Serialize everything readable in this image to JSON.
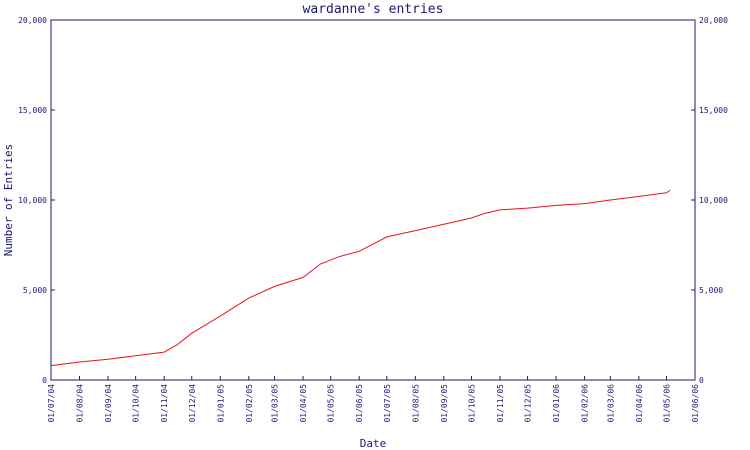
{
  "chart_data": {
    "type": "line",
    "title": "wardanne's entries",
    "xlabel": "Date",
    "ylabel": "Number of Entries",
    "ylim": [
      0,
      20000
    ],
    "yticks": [
      0,
      5000,
      10000,
      15000,
      20000
    ],
    "ytick_labels": [
      "0",
      "5,000",
      "10,000",
      "15,000",
      "20,000"
    ],
    "xticks": [
      "01/07/04",
      "01/08/04",
      "01/09/04",
      "01/10/04",
      "01/11/04",
      "01/12/04",
      "01/01/05",
      "01/02/05",
      "01/03/05",
      "01/04/05",
      "01/05/05",
      "01/06/05",
      "01/07/05",
      "01/08/05",
      "01/09/05",
      "01/10/05",
      "01/11/05",
      "01/12/05",
      "01/01/06",
      "01/02/06",
      "01/03/06",
      "01/04/06",
      "01/05/06",
      "01/06/06"
    ],
    "grid": false,
    "line_color": "#e8141e",
    "axis_color": "#1a1a6e",
    "series": [
      {
        "x": [
          "2004-07-01",
          "2004-08-01",
          "2004-09-01",
          "2004-10-01",
          "2004-11-01",
          "2004-11-15",
          "2004-12-01",
          "2005-01-01",
          "2005-02-01",
          "2005-03-01",
          "2005-04-01",
          "2005-04-20",
          "2005-05-10",
          "2005-06-01",
          "2005-07-01",
          "2005-08-01",
          "2005-09-01",
          "2005-10-01",
          "2005-10-15",
          "2005-11-01",
          "2005-12-01",
          "2006-01-01",
          "2006-02-01",
          "2006-03-01",
          "2006-04-01",
          "2006-05-01",
          "2006-05-05"
        ],
        "y": [
          800,
          1000,
          1150,
          1350,
          1550,
          1950,
          2600,
          3550,
          4550,
          5200,
          5700,
          6450,
          6850,
          7150,
          7950,
          8300,
          8650,
          9000,
          9250,
          9450,
          9550,
          9700,
          9800,
          10000,
          10200,
          10400,
          10550
        ]
      }
    ]
  }
}
